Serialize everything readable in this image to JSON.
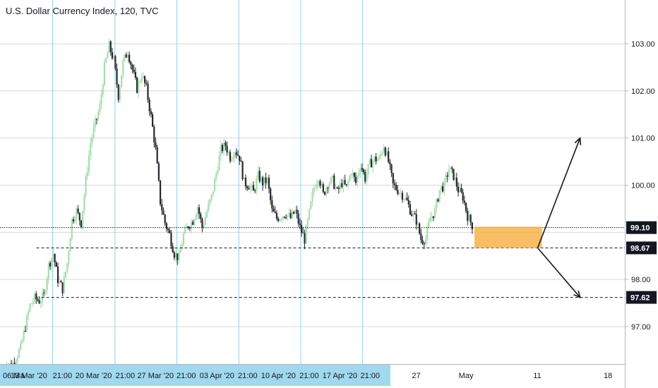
{
  "title": "U.S. Dollar Currency Index, 120, TVC",
  "chart_data": {
    "type": "candlestick",
    "y_axis": {
      "ylim": [
        96.0,
        103.5
      ],
      "ticks": [
        "103.00",
        "102.00",
        "101.00",
        "100.00",
        "98.00",
        "97.00"
      ],
      "tick_values": [
        103,
        102,
        101,
        100,
        98,
        97
      ]
    },
    "x_axis": {
      "ticks": [
        {
          "label": "06 Ma",
          "t": 0.5,
          "highlight": true
        },
        {
          "label": "13 Mar '20",
          "t": 5.6,
          "highlight": true
        },
        {
          "label": "21:00",
          "t": 12.8,
          "highlight": true
        },
        {
          "label": "20 Mar '20",
          "t": 19.5,
          "highlight": true
        },
        {
          "label": "21:00",
          "t": 26.3,
          "highlight": true
        },
        {
          "label": "27 Mar '20",
          "t": 32.8,
          "highlight": true
        },
        {
          "label": "21:00",
          "t": 39.4,
          "highlight": true
        },
        {
          "label": "03 Apr '20",
          "t": 46.0,
          "highlight": true
        },
        {
          "label": "21:00",
          "t": 52.6,
          "highlight": true
        },
        {
          "label": "10 Apr '20",
          "t": 59.2,
          "highlight": true
        },
        {
          "label": "21:00",
          "t": 65.8,
          "highlight": true
        },
        {
          "label": "17 Apr '20",
          "t": 72.4,
          "highlight": true
        },
        {
          "label": "21:00",
          "t": 78.9,
          "highlight": true
        },
        {
          "label": "27",
          "t": 88.8,
          "highlight": false
        },
        {
          "label": "May",
          "t": 99.5,
          "highlight": false
        },
        {
          "label": "11",
          "t": 114.8,
          "highlight": false
        },
        {
          "label": "18",
          "t": 130.0,
          "highlight": false
        }
      ],
      "t_range": [
        0,
        132.4
      ]
    },
    "vertical_gridlines_t": [
      10.7,
      24.1,
      37.4,
      50.7,
      64.0,
      77.3
    ],
    "price_path": [
      [
        0,
        96.05
      ],
      [
        1,
        96.25
      ],
      [
        2,
        96.15
      ],
      [
        3,
        96.35
      ],
      [
        4,
        96.55
      ],
      [
        5,
        97.0
      ],
      [
        6,
        97.45
      ],
      [
        7,
        97.6
      ],
      [
        8,
        97.55
      ],
      [
        9,
        97.65
      ],
      [
        10,
        98.3
      ],
      [
        11,
        98.55
      ],
      [
        12,
        98.0
      ],
      [
        13,
        97.8
      ],
      [
        14,
        98.35
      ],
      [
        15,
        99.25
      ],
      [
        16,
        99.45
      ],
      [
        17,
        99.2
      ],
      [
        18,
        100.1
      ],
      [
        19,
        100.9
      ],
      [
        20,
        101.3
      ],
      [
        21,
        101.65
      ],
      [
        22,
        102.5
      ],
      [
        23,
        102.95
      ],
      [
        24,
        102.65
      ],
      [
        25,
        101.9
      ],
      [
        26,
        102.6
      ],
      [
        27,
        102.85
      ],
      [
        28,
        102.45
      ],
      [
        29,
        102.05
      ],
      [
        30,
        102.35
      ],
      [
        31,
        102.05
      ],
      [
        32,
        101.45
      ],
      [
        33,
        100.75
      ],
      [
        34,
        99.65
      ],
      [
        35,
        99.2
      ],
      [
        36,
        98.95
      ],
      [
        37,
        98.55
      ],
      [
        38,
        98.45
      ],
      [
        39,
        98.95
      ],
      [
        40,
        99.15
      ],
      [
        41,
        99.25
      ],
      [
        42,
        99.55
      ],
      [
        43,
        99.1
      ],
      [
        44,
        99.45
      ],
      [
        45,
        99.75
      ],
      [
        46,
        100.25
      ],
      [
        47,
        100.75
      ],
      [
        48,
        100.85
      ],
      [
        49,
        100.6
      ],
      [
        50,
        100.75
      ],
      [
        51,
        100.6
      ],
      [
        52,
        100.05
      ],
      [
        53,
        100.0
      ],
      [
        54,
        99.85
      ],
      [
        55,
        100.2
      ],
      [
        56,
        100.05
      ],
      [
        57,
        100.1
      ],
      [
        58,
        99.45
      ],
      [
        59,
        99.3
      ],
      [
        60,
        99.35
      ],
      [
        61,
        99.4
      ],
      [
        62,
        99.3
      ],
      [
        63,
        99.45
      ],
      [
        64,
        99.1
      ],
      [
        65,
        98.85
      ],
      [
        66,
        99.4
      ],
      [
        67,
        99.95
      ],
      [
        68,
        100.2
      ],
      [
        69,
        99.8
      ],
      [
        70,
        100.05
      ],
      [
        71,
        100.1
      ],
      [
        72,
        99.85
      ],
      [
        73,
        100.05
      ],
      [
        74,
        99.95
      ],
      [
        75,
        100.3
      ],
      [
        76,
        100.05
      ],
      [
        77,
        100.45
      ],
      [
        78,
        100.15
      ],
      [
        79,
        100.45
      ],
      [
        80,
        100.55
      ],
      [
        81,
        100.55
      ],
      [
        82,
        100.85
      ],
      [
        83,
        100.5
      ],
      [
        84,
        100.0
      ],
      [
        85,
        99.9
      ],
      [
        86,
        99.8
      ],
      [
        87,
        99.65
      ],
      [
        88,
        99.4
      ],
      [
        89,
        99.25
      ],
      [
        90,
        98.85
      ],
      [
        91,
        98.85
      ],
      [
        92,
        99.3
      ],
      [
        93,
        99.45
      ],
      [
        94,
        99.9
      ],
      [
        95,
        100.0
      ],
      [
        96,
        100.35
      ],
      [
        97,
        100.2
      ],
      [
        98,
        99.9
      ],
      [
        99,
        99.75
      ],
      [
        100,
        99.35
      ],
      [
        101,
        99.15
      ]
    ],
    "horizontal_levels": [
      {
        "value": 99.1,
        "label": "99.10",
        "style": "dotted",
        "badge_color": "#131722"
      },
      {
        "value": 98.67,
        "label": "98.67",
        "style": "dashed",
        "badge_color": "#131722"
      },
      {
        "value": 97.62,
        "label": "97.62",
        "style": "dashed",
        "badge_color": "#131722"
      }
    ],
    "level_98_67_start_t": 7.2,
    "level_97_62_start_t": 8.3,
    "annotations": {
      "zone": {
        "t_start": 101.3,
        "t_end": 115.8,
        "y_top": 99.12,
        "y_bottom": 98.67,
        "color": "#f8b14a"
      },
      "arrow_up": {
        "from": [
          115.8,
          98.67
        ],
        "to": [
          124.0,
          101.0
        ]
      },
      "arrow_down": {
        "from": [
          115.8,
          98.67
        ],
        "to": [
          124.0,
          97.62
        ]
      }
    },
    "colors": {
      "up": "#a9dcb0",
      "down": "#26282e",
      "grid_horizontal": "#d7d7d7",
      "grid_vertical": "#8fd1ec",
      "axis_highlight_bg": "#a0d8ee"
    }
  }
}
